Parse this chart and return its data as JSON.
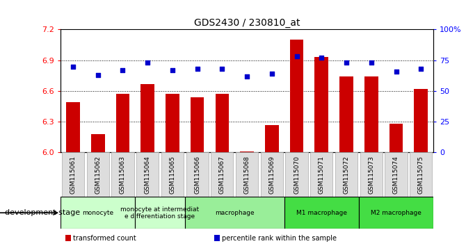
{
  "title": "GDS2430 / 230810_at",
  "samples": [
    "GSM115061",
    "GSM115062",
    "GSM115063",
    "GSM115064",
    "GSM115065",
    "GSM115066",
    "GSM115067",
    "GSM115068",
    "GSM115069",
    "GSM115070",
    "GSM115071",
    "GSM115072",
    "GSM115073",
    "GSM115074",
    "GSM115075"
  ],
  "bar_values": [
    6.49,
    6.18,
    6.57,
    6.67,
    6.57,
    6.54,
    6.57,
    6.01,
    6.27,
    7.1,
    6.93,
    6.74,
    6.74,
    6.28,
    6.62
  ],
  "dot_values": [
    70,
    63,
    67,
    73,
    67,
    68,
    68,
    62,
    64,
    78,
    77,
    73,
    73,
    66,
    68
  ],
  "bar_color": "#cc0000",
  "dot_color": "#0000cc",
  "ymin": 6.0,
  "ymax": 7.2,
  "yticks": [
    6.0,
    6.3,
    6.6,
    6.9,
    7.2
  ],
  "y2min": 0,
  "y2max": 100,
  "y2ticks": [
    0,
    25,
    50,
    75,
    100
  ],
  "y2ticklabels": [
    "0",
    "25",
    "50",
    "75",
    "100%"
  ],
  "groups_info": [
    {
      "label": "monocyte",
      "start": 0,
      "end": 2,
      "color": "#ccffcc"
    },
    {
      "label": "monocyte at intermediat\ne differentiation stage",
      "start": 3,
      "end": 4,
      "color": "#ccffcc"
    },
    {
      "label": "macrophage",
      "start": 5,
      "end": 8,
      "color": "#99ee99"
    },
    {
      "label": "M1 macrophage",
      "start": 9,
      "end": 11,
      "color": "#44dd44"
    },
    {
      "label": "M2 macrophage",
      "start": 12,
      "end": 14,
      "color": "#44dd44"
    }
  ],
  "legend_items": [
    {
      "label": "transformed count",
      "color": "#cc0000"
    },
    {
      "label": "percentile rank within the sample",
      "color": "#0000cc"
    }
  ],
  "dev_stage_label": "development stage"
}
